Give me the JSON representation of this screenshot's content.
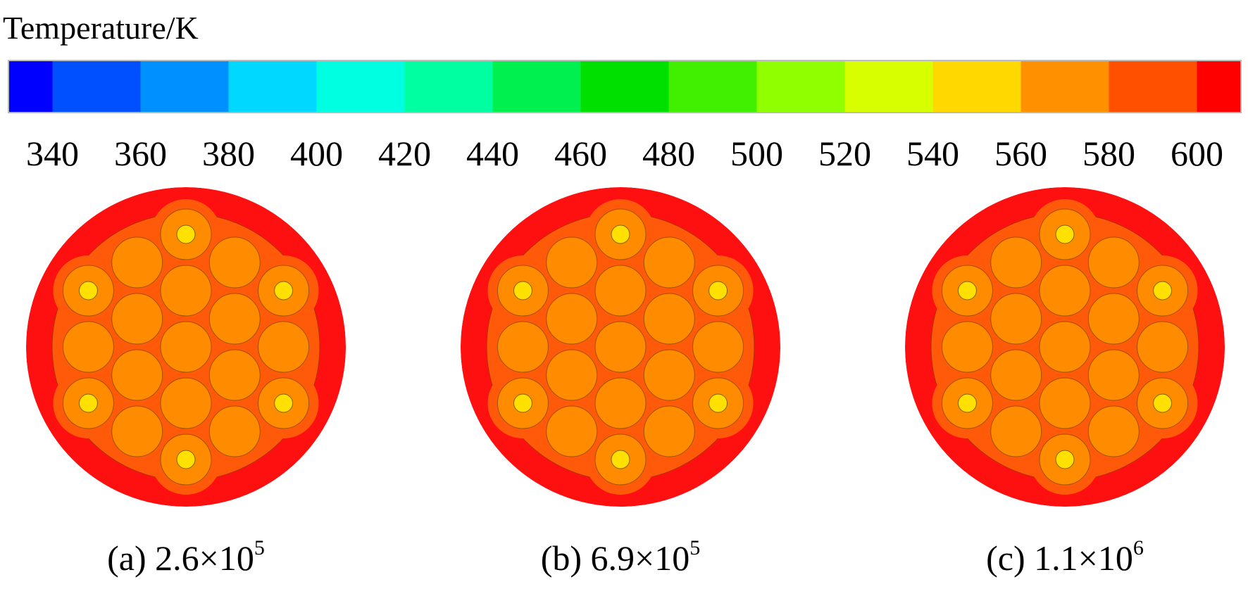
{
  "title": "Temperature/K",
  "colorbar": {
    "ticks": [
      "340",
      "360",
      "380",
      "400",
      "420",
      "440",
      "460",
      "480",
      "500",
      "520",
      "540",
      "560",
      "580",
      "600"
    ]
  },
  "panels": [
    {
      "label": "(a) 2.6×10",
      "exponent": "5"
    },
    {
      "label": "(b) 6.9×10",
      "exponent": "5"
    },
    {
      "label": "(c) 1.1×10",
      "exponent": "6"
    }
  ]
}
